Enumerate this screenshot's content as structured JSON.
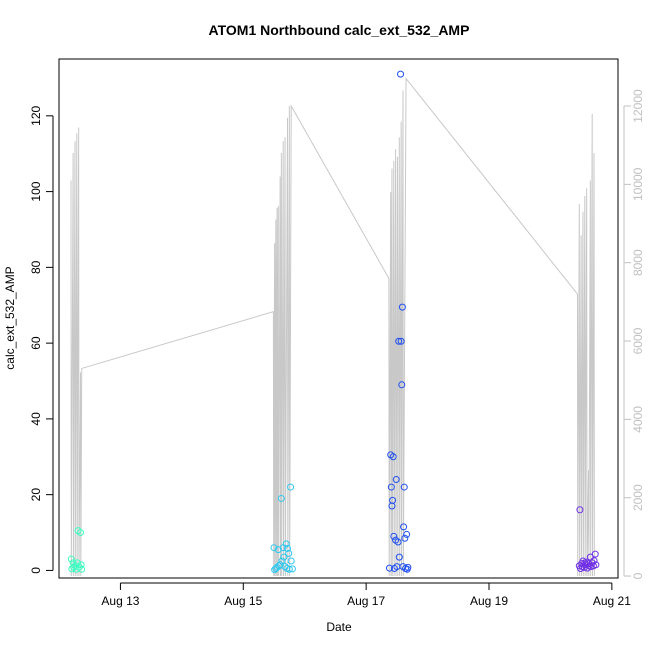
{
  "chart_data": {
    "type": "scatter",
    "title": "ATOM1 Northbound calc_ext_532_AMP",
    "xlabel": "Date",
    "ylabel": "calc_ext_532_AMP",
    "x_ticks": [
      {
        "day": 13,
        "label": "Aug 13"
      },
      {
        "day": 15,
        "label": "Aug 15"
      },
      {
        "day": 17,
        "label": "Aug 17"
      },
      {
        "day": 19,
        "label": "Aug 19"
      },
      {
        "day": 21,
        "label": "Aug 21"
      }
    ],
    "xlim_day": [
      12.0,
      21.1
    ],
    "ylim": [
      -2,
      135
    ],
    "y_ticks": [
      0,
      20,
      40,
      60,
      80,
      100,
      120
    ],
    "y2lim": [
      -50,
      13200
    ],
    "y2_ticks": [
      0,
      2000,
      4000,
      6000,
      8000,
      10000,
      12000
    ],
    "grid": false,
    "legend": "none",
    "colors": {
      "frame": "#000000",
      "secondary_axis": "#c0c0c0",
      "secondary_line": "#c8c8c8"
    },
    "points": [
      {
        "day": 12.2,
        "value": 3.0,
        "color": "#3cffc0"
      },
      {
        "day": 12.21,
        "value": 0.4,
        "color": "#3cffc0"
      },
      {
        "day": 12.23,
        "value": 2.0,
        "color": "#3cffc0"
      },
      {
        "day": 12.24,
        "value": 0.8,
        "color": "#3cffc0"
      },
      {
        "day": 12.26,
        "value": 1.2,
        "color": "#3cffc0"
      },
      {
        "day": 12.28,
        "value": 0.3,
        "color": "#3cffc0"
      },
      {
        "day": 12.3,
        "value": 2.0,
        "color": "#3cffc0"
      },
      {
        "day": 12.31,
        "value": 10.5,
        "color": "#3cffc0"
      },
      {
        "day": 12.33,
        "value": 0.9,
        "color": "#3cffc0"
      },
      {
        "day": 12.35,
        "value": 10.0,
        "color": "#3cffc0"
      },
      {
        "day": 12.36,
        "value": 1.5,
        "color": "#3cffc0"
      },
      {
        "day": 12.37,
        "value": 0.3,
        "color": "#3cffc0"
      },
      {
        "day": 15.5,
        "value": 6.0,
        "color": "#30c8f0"
      },
      {
        "day": 15.51,
        "value": 0.2,
        "color": "#30c8f0"
      },
      {
        "day": 15.53,
        "value": 0.5,
        "color": "#30c8f0"
      },
      {
        "day": 15.55,
        "value": 0.8,
        "color": "#30c8f0"
      },
      {
        "day": 15.57,
        "value": 5.5,
        "color": "#30c8f0"
      },
      {
        "day": 15.58,
        "value": 1.2,
        "color": "#30c8f0"
      },
      {
        "day": 15.6,
        "value": 1.5,
        "color": "#30c8f0"
      },
      {
        "day": 15.62,
        "value": 19.0,
        "color": "#30c8f0"
      },
      {
        "day": 15.63,
        "value": 2.5,
        "color": "#30c8f0"
      },
      {
        "day": 15.65,
        "value": 6.0,
        "color": "#30c8f0"
      },
      {
        "day": 15.66,
        "value": 3.5,
        "color": "#30c8f0"
      },
      {
        "day": 15.68,
        "value": 1.0,
        "color": "#30c8f0"
      },
      {
        "day": 15.7,
        "value": 7.0,
        "color": "#30c8f0"
      },
      {
        "day": 15.71,
        "value": 0.5,
        "color": "#30c8f0"
      },
      {
        "day": 15.72,
        "value": 5.8,
        "color": "#30c8f0"
      },
      {
        "day": 15.74,
        "value": 4.5,
        "color": "#30c8f0"
      },
      {
        "day": 15.75,
        "value": 0.3,
        "color": "#30c8f0"
      },
      {
        "day": 15.77,
        "value": 22.0,
        "color": "#30c8f0"
      },
      {
        "day": 15.78,
        "value": 2.5,
        "color": "#30c8f0"
      },
      {
        "day": 15.8,
        "value": 0.4,
        "color": "#30c8f0"
      },
      {
        "day": 17.38,
        "value": 0.6,
        "color": "#2050f0"
      },
      {
        "day": 17.4,
        "value": 30.5,
        "color": "#2050f0"
      },
      {
        "day": 17.41,
        "value": 22.0,
        "color": "#2050f0"
      },
      {
        "day": 17.42,
        "value": 17.0,
        "color": "#2050f0"
      },
      {
        "day": 17.43,
        "value": 18.5,
        "color": "#2050f0"
      },
      {
        "day": 17.44,
        "value": 30.0,
        "color": "#2050f0"
      },
      {
        "day": 17.45,
        "value": 9.0,
        "color": "#2050f0"
      },
      {
        "day": 17.46,
        "value": 0.5,
        "color": "#2050f0"
      },
      {
        "day": 17.48,
        "value": 8.0,
        "color": "#2050f0"
      },
      {
        "day": 17.49,
        "value": 24.0,
        "color": "#2050f0"
      },
      {
        "day": 17.5,
        "value": 1.0,
        "color": "#2050f0"
      },
      {
        "day": 17.52,
        "value": 7.5,
        "color": "#2050f0"
      },
      {
        "day": 17.53,
        "value": 60.5,
        "color": "#2050f0"
      },
      {
        "day": 17.54,
        "value": 3.5,
        "color": "#2050f0"
      },
      {
        "day": 17.56,
        "value": 131.0,
        "color": "#2050f0"
      },
      {
        "day": 17.57,
        "value": 60.5,
        "color": "#2050f0"
      },
      {
        "day": 17.58,
        "value": 49.0,
        "color": "#2050f0"
      },
      {
        "day": 17.59,
        "value": 69.5,
        "color": "#2050f0"
      },
      {
        "day": 17.6,
        "value": 1.0,
        "color": "#2050f0"
      },
      {
        "day": 17.61,
        "value": 11.5,
        "color": "#2050f0"
      },
      {
        "day": 17.62,
        "value": 22.0,
        "color": "#2050f0"
      },
      {
        "day": 17.63,
        "value": 8.5,
        "color": "#2050f0"
      },
      {
        "day": 17.64,
        "value": 0.5,
        "color": "#2050f0"
      },
      {
        "day": 17.66,
        "value": 9.5,
        "color": "#2050f0"
      },
      {
        "day": 17.67,
        "value": 0.3,
        "color": "#2050f0"
      },
      {
        "day": 17.68,
        "value": 0.8,
        "color": "#2050f0"
      },
      {
        "day": 20.47,
        "value": 1.2,
        "color": "#7030e8"
      },
      {
        "day": 20.48,
        "value": 16.0,
        "color": "#7030e8"
      },
      {
        "day": 20.49,
        "value": 0.5,
        "color": "#7030e8"
      },
      {
        "day": 20.51,
        "value": 1.8,
        "color": "#7030e8"
      },
      {
        "day": 20.52,
        "value": 1.0,
        "color": "#7030e8"
      },
      {
        "day": 20.53,
        "value": 2.5,
        "color": "#7030e8"
      },
      {
        "day": 20.55,
        "value": 0.8,
        "color": "#7030e8"
      },
      {
        "day": 20.56,
        "value": 2.0,
        "color": "#7030e8"
      },
      {
        "day": 20.57,
        "value": 1.5,
        "color": "#7030e8"
      },
      {
        "day": 20.59,
        "value": 2.2,
        "color": "#7030e8"
      },
      {
        "day": 20.6,
        "value": 0.6,
        "color": "#7030e8"
      },
      {
        "day": 20.62,
        "value": 1.8,
        "color": "#7030e8"
      },
      {
        "day": 20.63,
        "value": 1.2,
        "color": "#7030e8"
      },
      {
        "day": 20.65,
        "value": 3.5,
        "color": "#7030e8"
      },
      {
        "day": 20.66,
        "value": 1.0,
        "color": "#7030e8"
      },
      {
        "day": 20.68,
        "value": 2.0,
        "color": "#7030e8"
      },
      {
        "day": 20.7,
        "value": 1.2,
        "color": "#7030e8"
      },
      {
        "day": 20.71,
        "value": 2.6,
        "color": "#7030e8"
      },
      {
        "day": 20.73,
        "value": 4.3,
        "color": "#7030e8"
      },
      {
        "day": 20.74,
        "value": 1.5,
        "color": "#7030e8"
      }
    ],
    "secondary_line": [
      [
        12.195,
        10100
      ],
      [
        12.2,
        0
      ],
      [
        12.23,
        10800
      ],
      [
        12.235,
        0
      ],
      [
        12.26,
        11100
      ],
      [
        12.265,
        0
      ],
      [
        12.29,
        11300
      ],
      [
        12.295,
        0
      ],
      [
        12.32,
        11450
      ],
      [
        12.325,
        0
      ],
      [
        12.35,
        5200
      ],
      [
        12.355,
        0
      ],
      [
        12.37,
        5300
      ],
      [
        15.49,
        6750
      ],
      [
        15.495,
        0
      ],
      [
        15.51,
        8500
      ],
      [
        15.515,
        0
      ],
      [
        15.53,
        9100
      ],
      [
        15.535,
        0
      ],
      [
        15.55,
        9400
      ],
      [
        15.555,
        0
      ],
      [
        15.57,
        9450
      ],
      [
        15.575,
        0
      ],
      [
        15.6,
        10200
      ],
      [
        15.605,
        0
      ],
      [
        15.62,
        10800
      ],
      [
        15.625,
        0
      ],
      [
        15.65,
        11100
      ],
      [
        15.655,
        0
      ],
      [
        15.68,
        11200
      ],
      [
        15.685,
        0
      ],
      [
        15.72,
        11700
      ],
      [
        15.725,
        0
      ],
      [
        15.75,
        12000
      ],
      [
        15.755,
        0
      ],
      [
        15.78,
        12000
      ],
      [
        17.37,
        7600
      ],
      [
        17.375,
        0
      ],
      [
        17.4,
        9800
      ],
      [
        17.405,
        0
      ],
      [
        17.42,
        10400
      ],
      [
        17.425,
        0
      ],
      [
        17.45,
        10600
      ],
      [
        17.455,
        0
      ],
      [
        17.48,
        10900
      ],
      [
        17.485,
        0
      ],
      [
        17.51,
        10700
      ],
      [
        17.515,
        0
      ],
      [
        17.54,
        11200
      ],
      [
        17.545,
        0
      ],
      [
        17.57,
        11600
      ],
      [
        17.575,
        0
      ],
      [
        17.6,
        12400
      ],
      [
        17.605,
        0
      ],
      [
        17.65,
        12700
      ],
      [
        20.44,
        7200
      ],
      [
        20.445,
        0
      ],
      [
        20.47,
        9500
      ],
      [
        20.475,
        0
      ],
      [
        20.5,
        8700
      ],
      [
        20.505,
        0
      ],
      [
        20.53,
        9300
      ],
      [
        20.535,
        0
      ],
      [
        20.56,
        9700
      ],
      [
        20.565,
        0
      ],
      [
        20.59,
        9900
      ],
      [
        20.595,
        0
      ],
      [
        20.62,
        2700
      ],
      [
        20.625,
        0
      ],
      [
        20.65,
        10100
      ],
      [
        20.655,
        0
      ],
      [
        20.68,
        11800
      ],
      [
        20.685,
        0
      ],
      [
        20.71,
        10800
      ],
      [
        20.715,
        0
      ]
    ]
  }
}
